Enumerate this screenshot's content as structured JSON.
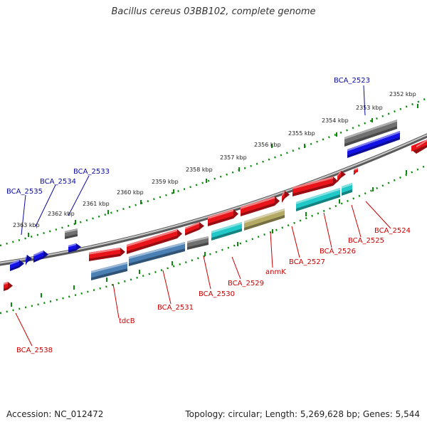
{
  "title": "Bacillus cereus 03BB102, complete genome",
  "footer": {
    "accession": "Accession: NC_012472",
    "summary": "Topology: circular; Length: 5,269,628 bp; Genes: 5,544"
  },
  "colors": {
    "red": "#e8141a",
    "blue": "#1212e6",
    "gray": "#707070",
    "cyan": "#20c8c8",
    "steel": "#4a80b4",
    "olive": "#b4aa64",
    "label_red": "#cc0000",
    "label_blue": "#0a0aa0",
    "tick_green": "#0a8a0a"
  },
  "ticks": [
    {
      "label": "2352 kbp"
    },
    {
      "label": "2353 kbp"
    },
    {
      "label": "2354 kbp"
    },
    {
      "label": "2355 kbp"
    },
    {
      "label": "2356 kbp"
    },
    {
      "label": "2357 kbp"
    },
    {
      "label": "2358 kbp"
    },
    {
      "label": "2359 kbp"
    },
    {
      "label": "2360 kbp"
    },
    {
      "label": "2361 kbp"
    },
    {
      "label": "2362 kbp"
    },
    {
      "label": "2363 kbp"
    }
  ],
  "gene_labels": [
    {
      "text": "BCA_2523",
      "color": "blue"
    },
    {
      "text": "BCA_2533",
      "color": "blue"
    },
    {
      "text": "BCA_2534",
      "color": "blue"
    },
    {
      "text": "BCA_2535",
      "color": "blue"
    },
    {
      "text": "BCA_2524",
      "color": "red"
    },
    {
      "text": "BCA_2525",
      "color": "red"
    },
    {
      "text": "BCA_2526",
      "color": "red"
    },
    {
      "text": "BCA_2527",
      "color": "red"
    },
    {
      "text": "anmK",
      "color": "red"
    },
    {
      "text": "BCA_2529",
      "color": "red"
    },
    {
      "text": "BCA_2530",
      "color": "red"
    },
    {
      "text": "BCA_2531",
      "color": "red"
    },
    {
      "text": "tdcB",
      "color": "red"
    },
    {
      "text": "BCA_2538",
      "color": "red"
    }
  ]
}
